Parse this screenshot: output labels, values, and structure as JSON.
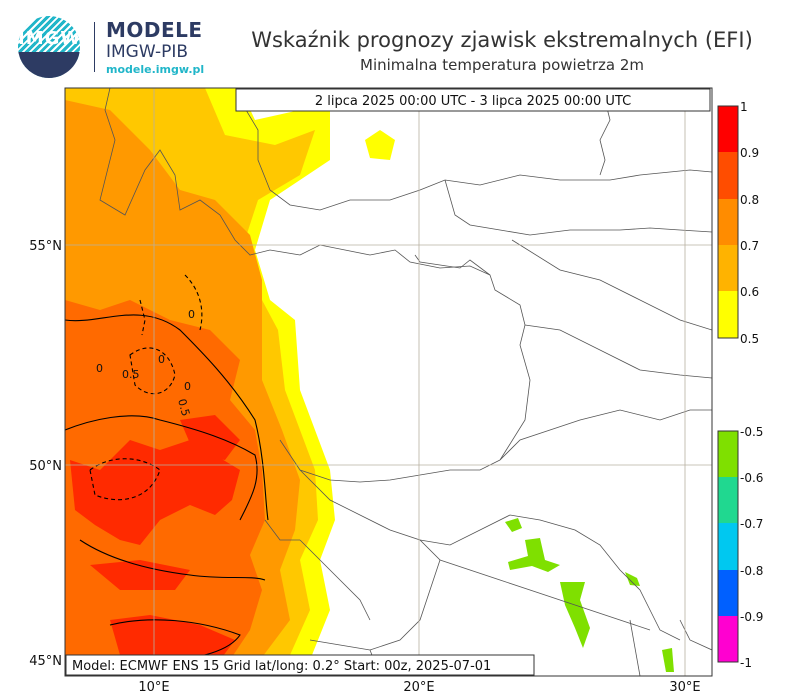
{
  "logo": {
    "badge": "IMGW",
    "brand": "MODELE",
    "institute": "IMGW-PIB",
    "url": "modele.imgw.pl"
  },
  "title": "Wskaźnik prognozy zjawisk ekstremalnych (EFI)",
  "subtitle": "Minimalna temperatura powietrza 2m",
  "period": "2 lipca 2025 00:00 UTC - 3 lipca 2025 00:00 UTC",
  "footer": "Model: ECMWF  ENS 15  Grid lat/long: 0.2°  Start: 00z, 2025-07-01",
  "axes": {
    "lat_labels": [
      "55°N",
      "50°N",
      "45°N"
    ],
    "lon_labels": [
      "10°E",
      "20°E",
      "30°E"
    ]
  },
  "colorbar_positive": {
    "labels": [
      "1",
      "0.9",
      "0.8",
      "0.7",
      "0.6",
      "0.5"
    ],
    "colors": [
      "#ff0000",
      "#ff4d00",
      "#ff8c00",
      "#ffb300",
      "#ffe000",
      "#ffff00"
    ]
  },
  "colorbar_negative": {
    "labels": [
      "-0.5",
      "-0.6",
      "-0.7",
      "-0.8",
      "-0.9",
      "-1"
    ],
    "colors": [
      "#7fe000",
      "#20d890",
      "#00c8f0",
      "#0060ff",
      "#ff00d0"
    ]
  },
  "contour_labels": [
    "0",
    "0",
    "0.5",
    "0",
    "0.5",
    "0"
  ]
}
